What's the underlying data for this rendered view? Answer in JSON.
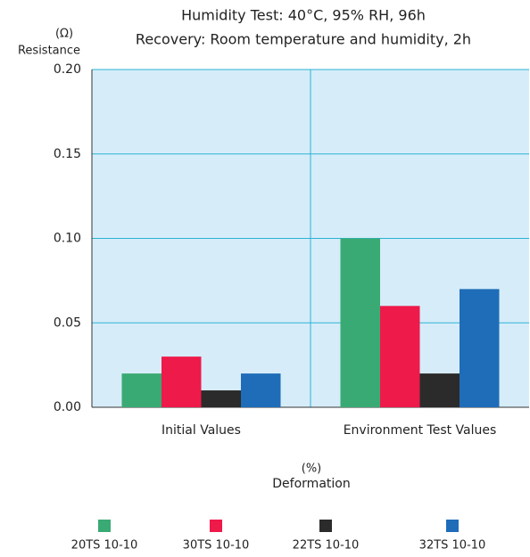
{
  "chart_data": {
    "type": "bar",
    "title": "Humidity Test: 40°C, 95% RH, 96h",
    "subtitle": "Recovery: Room temperature and humidity, 2h",
    "y_label": "Resistance",
    "y_unit": "(Ω)",
    "x_label": "Deformation",
    "x_unit": "(%)",
    "categories": [
      "Initial Values",
      "Environment Test Values"
    ],
    "series": [
      {
        "name": "20TS 10-10",
        "color": "#3aaa74",
        "values": [
          0.02,
          0.1
        ]
      },
      {
        "name": "30TS 10-10",
        "color": "#ee1a4a",
        "values": [
          0.03,
          0.06
        ]
      },
      {
        "name": "22TS 10-10",
        "color": "#2b2b2b",
        "values": [
          0.01,
          0.02
        ]
      },
      {
        "name": "32TS 10-10",
        "color": "#1f6db8",
        "values": [
          0.02,
          0.07
        ]
      }
    ],
    "ylim": [
      0,
      0.2
    ],
    "yticks": [
      {
        "value": 0,
        "label": "0.00"
      },
      0.05,
      {
        "value": 0.1,
        "label": "0.10"
      },
      0.15,
      {
        "value": 0.2,
        "label": "0.20"
      }
    ],
    "grid": true
  }
}
